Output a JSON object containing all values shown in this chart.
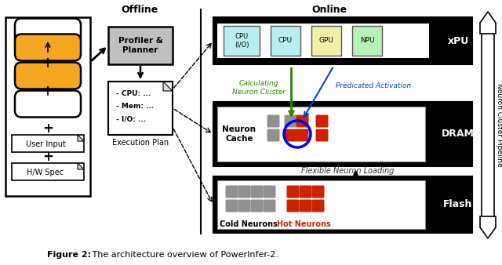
{
  "title_bold": "Figure 2:",
  "title_rest": " The architecture overview of PowerInfer-2.",
  "offline_label": "Offline",
  "online_label": "Online",
  "pipeline_label": "Neuron Cluster Pipeline",
  "xpu_label": "xPU",
  "dram_label": "DRAM",
  "flash_label": "Flash",
  "profiler_label": "Profiler &\nPlanner",
  "exec_plan_label": "Execution Plan",
  "exec_plan_lines": [
    "- CPU: ...",
    "- Mem: ...",
    "- I/O: ..."
  ],
  "user_input_label": "User Input",
  "hw_spec_label": "H/W Spec",
  "neuron_cache_label": "Neuron\nCache",
  "calc_label": "Calculating\nNeuron Cluster",
  "pred_label": "Predicated Activation",
  "flex_label": "Flexible Neuron Loading",
  "cold_label": "Cold Neurons",
  "hot_label": "Hot Neurons",
  "cpu_io_label": "CPU\n(I/O)",
  "cpu_label": "CPU",
  "gpu_label": "GPU",
  "npu_label": "NPU",
  "colors": {
    "black": "#000000",
    "white": "#ffffff",
    "orange": "#f5a623",
    "red": "#cc2200",
    "green": "#228800",
    "blue": "#0044cc",
    "cpu_io_bg": "#b8eef0",
    "cpu_bg": "#b8eef0",
    "gpu_bg": "#f0f0a8",
    "npu_bg": "#b8f0b8",
    "profiler_bg": "#c0c0c0",
    "doc_fold": "#e0e0e0",
    "neuron_gray": "#909090",
    "neuron_red": "#cc2200",
    "dark_gray": "#333333"
  },
  "figsize": [
    6.4,
    3.38
  ],
  "dpi": 100
}
